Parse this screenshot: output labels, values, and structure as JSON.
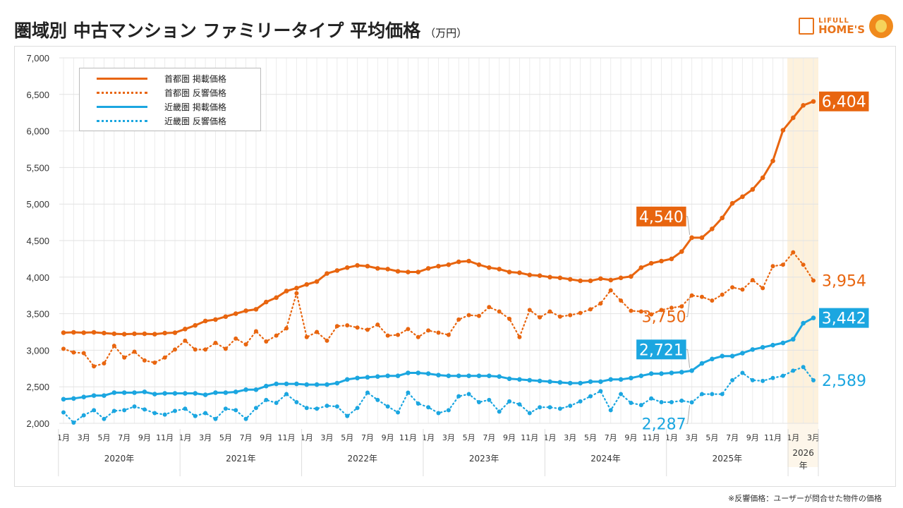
{
  "title": "圏域別 中古マンション ファミリータイプ 平均価格",
  "unit": "（万円）",
  "logo": {
    "line1": "LIFULL",
    "line2": "HOME'S"
  },
  "footnote": "※反響価格：ユーザーが問合せた物件の価格",
  "colors": {
    "tokyo": "#e8650f",
    "kansai": "#1ba6e0",
    "highlight": "#fdf1dc",
    "grid": "#e6e6e6"
  },
  "chart_data": {
    "type": "line",
    "title": "圏域別 中古マンション ファミリータイプ 平均価格（万円）",
    "ylim": [
      2000,
      7000
    ],
    "yticks": [
      "2,000",
      "2,500",
      "3,000",
      "3,500",
      "4,000",
      "4,500",
      "5,000",
      "5,500",
      "6,000",
      "6,500",
      "7,000"
    ],
    "ytick_values": [
      2000,
      2500,
      3000,
      3500,
      4000,
      4500,
      5000,
      5500,
      6000,
      6500,
      7000
    ],
    "start": "2020-01",
    "months_count": 75,
    "month_labels": [
      "1月",
      "3月",
      "5月",
      "7月",
      "9月",
      "11月"
    ],
    "years": [
      "2020年",
      "2021年",
      "2022年",
      "2023年",
      "2024年",
      "2025年",
      "2026\n年"
    ],
    "highlight_year": "2026",
    "grid": true,
    "legend_position": "top-left",
    "series": [
      {
        "name": "首都圏 掲載価格",
        "color": "#e8650f",
        "style": "solid",
        "values": [
          3240,
          3245,
          3240,
          3245,
          3235,
          3225,
          3220,
          3225,
          3225,
          3220,
          3235,
          3240,
          3290,
          3340,
          3400,
          3420,
          3460,
          3500,
          3540,
          3560,
          3660,
          3720,
          3810,
          3850,
          3900,
          3940,
          4050,
          4090,
          4130,
          4160,
          4150,
          4120,
          4110,
          4080,
          4070,
          4070,
          4120,
          4150,
          4170,
          4210,
          4220,
          4170,
          4130,
          4110,
          4070,
          4060,
          4030,
          4020,
          4000,
          3990,
          3970,
          3950,
          3950,
          3980,
          3960,
          3990,
          4010,
          4130,
          4190,
          4220,
          4250,
          4350,
          4540,
          4540,
          4660,
          4810,
          5010,
          5100,
          5200,
          5360,
          5590,
          6010,
          6180,
          6350,
          6404
        ]
      },
      {
        "name": "首都圏 反響価格",
        "color": "#e8650f",
        "style": "dotted",
        "values": [
          3020,
          2970,
          2960,
          2780,
          2820,
          3060,
          2900,
          2980,
          2860,
          2830,
          2900,
          3010,
          3130,
          3010,
          3010,
          3100,
          3020,
          3160,
          3080,
          3260,
          3120,
          3200,
          3300,
          3780,
          3180,
          3250,
          3130,
          3330,
          3340,
          3310,
          3280,
          3350,
          3200,
          3210,
          3290,
          3180,
          3270,
          3240,
          3210,
          3420,
          3480,
          3470,
          3590,
          3530,
          3430,
          3180,
          3550,
          3450,
          3530,
          3460,
          3480,
          3510,
          3560,
          3640,
          3820,
          3680,
          3540,
          3530,
          3490,
          3550,
          3580,
          3600,
          3750,
          3730,
          3680,
          3760,
          3860,
          3830,
          3960,
          3850,
          4150,
          4170,
          4340,
          4170,
          3954
        ]
      },
      {
        "name": "近畿圏 掲載価格",
        "color": "#1ba6e0",
        "style": "solid",
        "values": [
          2330,
          2340,
          2360,
          2380,
          2380,
          2420,
          2420,
          2420,
          2430,
          2400,
          2410,
          2410,
          2410,
          2410,
          2390,
          2420,
          2420,
          2430,
          2460,
          2460,
          2510,
          2540,
          2540,
          2540,
          2530,
          2530,
          2530,
          2550,
          2600,
          2620,
          2630,
          2640,
          2650,
          2650,
          2690,
          2690,
          2680,
          2660,
          2650,
          2650,
          2650,
          2650,
          2650,
          2640,
          2610,
          2600,
          2590,
          2580,
          2570,
          2560,
          2550,
          2550,
          2570,
          2570,
          2600,
          2600,
          2620,
          2650,
          2680,
          2680,
          2690,
          2700,
          2721,
          2820,
          2880,
          2920,
          2920,
          2960,
          3010,
          3040,
          3070,
          3100,
          3150,
          3370,
          3442
        ]
      },
      {
        "name": "近畿圏 反響価格",
        "color": "#1ba6e0",
        "style": "dotted",
        "values": [
          2150,
          2010,
          2110,
          2180,
          2060,
          2170,
          2180,
          2230,
          2190,
          2140,
          2120,
          2170,
          2200,
          2100,
          2140,
          2060,
          2200,
          2180,
          2060,
          2210,
          2320,
          2280,
          2400,
          2290,
          2210,
          2200,
          2240,
          2230,
          2100,
          2210,
          2420,
          2320,
          2230,
          2150,
          2420,
          2270,
          2220,
          2140,
          2180,
          2370,
          2400,
          2290,
          2320,
          2160,
          2300,
          2260,
          2140,
          2220,
          2220,
          2200,
          2240,
          2300,
          2370,
          2440,
          2180,
          2400,
          2280,
          2250,
          2340,
          2290,
          2290,
          2310,
          2287,
          2400,
          2400,
          2400,
          2590,
          2690,
          2590,
          2580,
          2620,
          2650,
          2720,
          2770,
          2589
        ]
      }
    ],
    "annotations": [
      {
        "series": 0,
        "index": 74,
        "text": "6,404",
        "boxed": true,
        "side": "right"
      },
      {
        "series": 1,
        "index": 74,
        "text": "3,954",
        "boxed": false,
        "side": "right"
      },
      {
        "series": 2,
        "index": 74,
        "text": "3,442",
        "boxed": true,
        "side": "right"
      },
      {
        "series": 3,
        "index": 74,
        "text": "2,589",
        "boxed": false,
        "side": "right"
      },
      {
        "series": 0,
        "index": 62,
        "text": "4,540",
        "boxed": true,
        "side": "callout-up"
      },
      {
        "series": 1,
        "index": 62,
        "text": "3,750",
        "boxed": false,
        "side": "callout-down"
      },
      {
        "series": 2,
        "index": 62,
        "text": "2,721",
        "boxed": true,
        "side": "callout-up"
      },
      {
        "series": 3,
        "index": 62,
        "text": "2,287",
        "boxed": false,
        "side": "callout-down"
      }
    ]
  }
}
